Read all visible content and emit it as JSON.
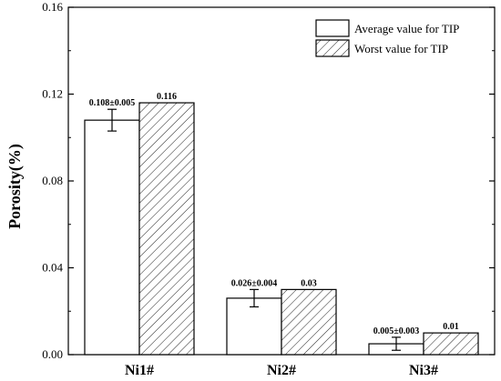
{
  "chart_data": {
    "type": "bar",
    "categories": [
      "Ni1#",
      "Ni2#",
      "Ni3#"
    ],
    "ylabel": "Porosity(%)",
    "xlabel": "",
    "ylim": [
      0,
      0.16
    ],
    "yticks": [
      "0.00",
      "0.04",
      "0.08",
      "0.12",
      "0.16"
    ],
    "legend_position": "top-right",
    "series": [
      {
        "name": "Average value for TIP",
        "values": [
          0.108,
          0.026,
          0.005
        ],
        "errors": [
          0.005,
          0.004,
          0.003
        ],
        "labels": [
          "0.108±0.005",
          "0.026±0.004",
          "0.005±0.003"
        ],
        "fill": "#ffffff",
        "pattern": "none"
      },
      {
        "name": "Worst value for TIP",
        "values": [
          0.116,
          0.03,
          0.01
        ],
        "labels": [
          "0.116",
          "0.03",
          "0.01"
        ],
        "fill": "#ffffff",
        "pattern": "hatch"
      }
    ]
  }
}
